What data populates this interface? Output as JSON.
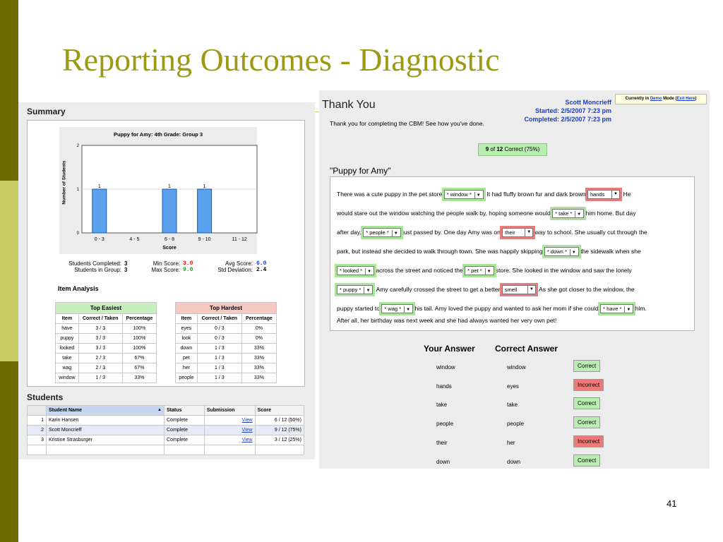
{
  "slide": {
    "title": "Reporting Outcomes - Diagnostic",
    "number": "41"
  },
  "summary": {
    "heading": "Summary",
    "chart_data": {
      "type": "bar",
      "title": "Puppy for Amy: 4th Grade: Group 3",
      "xlabel": "Score",
      "ylabel": "Number of Students",
      "categories": [
        "0 - 3",
        "4 - 5",
        "6 - 8",
        "9 - 10",
        "11 - 12"
      ],
      "values": [
        1,
        0,
        1,
        1,
        0
      ],
      "ylim": [
        0,
        2
      ],
      "yticks": [
        0,
        1,
        2
      ]
    },
    "stats": {
      "students_completed_label": "Students Completed:",
      "students_completed": "3",
      "students_in_group_label": "Students in Group:",
      "students_in_group": "3",
      "min_score_label": "Min Score:",
      "min_score": "3.0",
      "max_score_label": "Max Score:",
      "max_score": "9.0",
      "avg_score_label": "Avg Score:",
      "avg_score": "6.0",
      "std_dev_label": "Std Deviation:",
      "std_dev": "2.4"
    },
    "item_analysis_heading": "Item Analysis",
    "top_easiest": {
      "title": "Top Easiest",
      "headers": [
        "Item",
        "Correct / Taken",
        "Percentage"
      ],
      "rows": [
        [
          "have",
          "3 / 3",
          "100%"
        ],
        [
          "puppy",
          "3 / 3",
          "100%"
        ],
        [
          "looked",
          "3 / 3",
          "100%"
        ],
        [
          "take",
          "2 / 3",
          "67%"
        ],
        [
          "wag",
          "2 / 3",
          "67%"
        ],
        [
          "window",
          "1 / 3",
          "33%"
        ]
      ]
    },
    "top_hardest": {
      "title": "Top Hardest",
      "headers": [
        "Item",
        "Correct / Taken",
        "Percentage"
      ],
      "rows": [
        [
          "eyes",
          "0 / 3",
          "0%"
        ],
        [
          "look",
          "0 / 3",
          "0%"
        ],
        [
          "down",
          "1 / 3",
          "33%"
        ],
        [
          "pet",
          "1 / 3",
          "33%"
        ],
        [
          "her",
          "1 / 3",
          "33%"
        ],
        [
          "people",
          "1 / 3",
          "33%"
        ]
      ]
    }
  },
  "students": {
    "heading": "Students",
    "headers": [
      "Student Name",
      "Status",
      "Submission",
      "Score"
    ],
    "rows": [
      {
        "n": "1",
        "name": "Karin Hansen",
        "status": "Complete",
        "link": "View",
        "score": "6 / 12 (50%)"
      },
      {
        "n": "2",
        "name": "Scott Moncrieff",
        "status": "Complete",
        "link": "View",
        "score": "9 / 12 (75%)"
      },
      {
        "n": "3",
        "name": "Kristine Strasburger",
        "status": "Complete",
        "link": "View",
        "score": "3 / 12 (25%)"
      }
    ]
  },
  "result": {
    "thank_you": "Thank You",
    "user": "Scott Moncrieff",
    "started": "Started: 2/5/2007 7:23 pm",
    "completed": "Completed: 2/5/2007 7:23 pm",
    "demo_prefix": "Currently in ",
    "demo_link": "Demo",
    "demo_mid": " Mode (",
    "exit_link": "Exit Here",
    "demo_suffix": ")",
    "message": "Thank you for completing the CBM! See how you've done.",
    "score_num": "9",
    "score_of": " of ",
    "score_total": "12",
    "score_rest": " Correct (75%)",
    "passage_title": "\"Puppy for Amy\"",
    "passage": {
      "l1a": "There was a cute puppy in the pet store",
      "d1": "* window *",
      "l1b": ". It had fluffy brown fur and dark brown",
      "d2": "hands",
      "l1c": ". He",
      "l2a": "would stare out the window watching the people walk by, hoping someone would",
      "d3": "* take *",
      "l2b": "him home. But day",
      "l3a": "after day,",
      "d4": "* people *",
      "l3b": "just passed by. One day Amy was on",
      "d5": "their",
      "l3c": "way to school. She usually cut through the",
      "l4a": "park, but instead she decided to walk through town. She was happily skipping",
      "d6": "* down *",
      "l4b": "the sidewalk when she",
      "d7": "* looked *",
      "l5a": "across the street and noticed the",
      "d8": "* pet *",
      "l5b": "store. She looked in the window and saw the lonely",
      "d9": "* puppy *",
      "l6a": ". Amy carefully crossed the street to get a better",
      "d10": "smell",
      "l6b": ". As she got closer to the window, the",
      "l7a": "puppy started to",
      "d11": "* wag *",
      "l7b": "his tail. Amy loved the puppy and wanted to ask her mom if she could",
      "d12": "* have *",
      "l7c": "him.",
      "l8": "After all, her birthday was next week and she had always wanted her very own pet!"
    },
    "answers_header": {
      "yours": "Your Answer",
      "correct": "Correct Answer"
    },
    "answers": [
      {
        "yours": "window",
        "correct": "window",
        "result": "Correct"
      },
      {
        "yours": "hands",
        "correct": "eyes",
        "result": "Incorrect"
      },
      {
        "yours": "take",
        "correct": "take",
        "result": "Correct"
      },
      {
        "yours": "people",
        "correct": "people",
        "result": "Correct"
      },
      {
        "yours": "their",
        "correct": "her",
        "result": "Incorrect"
      },
      {
        "yours": "down",
        "correct": "down",
        "result": "Correct"
      }
    ]
  },
  "colors": {
    "title": "#9c9a14",
    "sidebar_dark": "#6b6b00",
    "sidebar_light": "#c9cc63",
    "bar": "#5aa2ee",
    "correct": "#b9ecb0",
    "incorrect": "#ec7a7a"
  }
}
